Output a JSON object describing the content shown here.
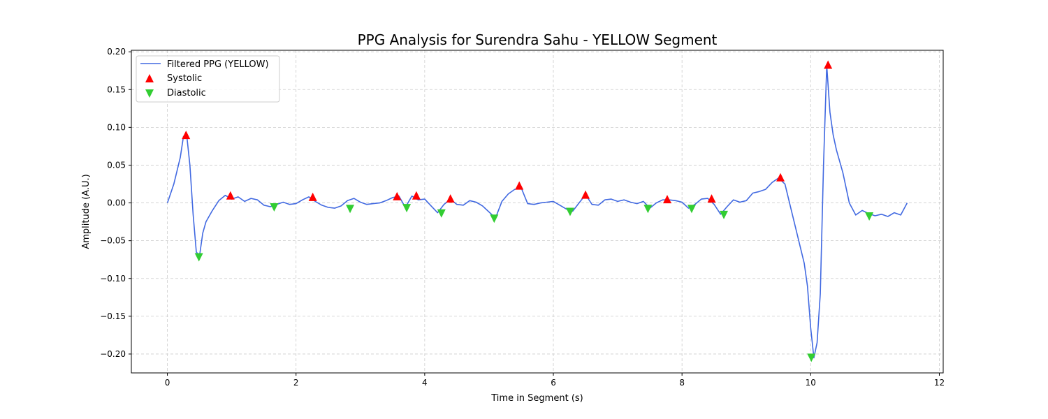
{
  "chart_data": {
    "type": "line",
    "title": "PPG Analysis for Surendra Sahu - YELLOW Segment",
    "xlabel": "Time in Segment (s)",
    "ylabel": "Amplitude (A.U.)",
    "xlim": [
      -0.56,
      12.06
    ],
    "ylim": [
      -0.225,
      0.202
    ],
    "xticks": [
      0,
      2,
      4,
      6,
      8,
      10,
      12
    ],
    "xtick_labels": [
      "0",
      "2",
      "4",
      "6",
      "8",
      "10",
      "12"
    ],
    "yticks": [
      -0.2,
      -0.15,
      -0.1,
      -0.05,
      0.0,
      0.05,
      0.1,
      0.15,
      0.2
    ],
    "ytick_labels": [
      "−0.20",
      "−0.15",
      "−0.10",
      "−0.05",
      "0.00",
      "0.05",
      "0.10",
      "0.15",
      "0.20"
    ],
    "grid": true,
    "legend_position": "top-left",
    "colors": {
      "line": "#4169e1",
      "systolic": "#ff0000",
      "diastolic": "#32cd32"
    },
    "series": [
      {
        "name": "Filtered PPG (YELLOW)",
        "kind": "line",
        "x": [
          0,
          0.1,
          0.2,
          0.25,
          0.3,
          0.35,
          0.4,
          0.45,
          0.5,
          0.55,
          0.6,
          0.7,
          0.8,
          0.9,
          1.0,
          1.1,
          1.2,
          1.3,
          1.4,
          1.5,
          1.6,
          1.7,
          1.8,
          1.9,
          2.0,
          2.1,
          2.2,
          2.3,
          2.4,
          2.5,
          2.6,
          2.7,
          2.8,
          2.9,
          3.0,
          3.1,
          3.2,
          3.3,
          3.4,
          3.5,
          3.6,
          3.7,
          3.8,
          3.9,
          4.0,
          4.1,
          4.2,
          4.3,
          4.4,
          4.5,
          4.6,
          4.7,
          4.8,
          4.9,
          5.0,
          5.1,
          5.2,
          5.3,
          5.4,
          5.5,
          5.6,
          5.7,
          5.8,
          5.9,
          6.0,
          6.1,
          6.2,
          6.3,
          6.4,
          6.5,
          6.6,
          6.7,
          6.8,
          6.9,
          7.0,
          7.1,
          7.2,
          7.3,
          7.4,
          7.5,
          7.6,
          7.7,
          7.8,
          7.9,
          8.0,
          8.1,
          8.2,
          8.3,
          8.4,
          8.5,
          8.6,
          8.7,
          8.8,
          8.9,
          9.0,
          9.1,
          9.2,
          9.3,
          9.4,
          9.5,
          9.6,
          9.7,
          9.8,
          9.9,
          9.95,
          10.0,
          10.05,
          10.1,
          10.15,
          10.2,
          10.25,
          10.3,
          10.35,
          10.4,
          10.5,
          10.6,
          10.7,
          10.8,
          10.9,
          11.0,
          11.1,
          11.2,
          11.3,
          11.4,
          11.5
        ],
        "y": [
          0.0,
          0.025,
          0.06,
          0.088,
          0.09,
          0.05,
          -0.015,
          -0.065,
          -0.07,
          -0.04,
          -0.025,
          -0.01,
          0.003,
          0.01,
          0.005,
          0.008,
          0.002,
          0.006,
          0.004,
          -0.003,
          -0.005,
          -0.002,
          0.001,
          -0.002,
          -0.001,
          0.004,
          0.008,
          0.002,
          -0.003,
          -0.006,
          -0.007,
          -0.004,
          0.003,
          0.006,
          0.001,
          -0.002,
          -0.001,
          0.0,
          0.003,
          0.007,
          0.009,
          -0.006,
          0.009,
          0.004,
          0.005,
          -0.004,
          -0.013,
          -0.002,
          0.005,
          -0.002,
          -0.003,
          0.003,
          0.001,
          -0.004,
          -0.012,
          -0.02,
          0.002,
          0.012,
          0.018,
          0.02,
          -0.001,
          -0.002,
          0.0,
          0.001,
          0.002,
          -0.003,
          -0.008,
          -0.011,
          0.0,
          0.011,
          -0.002,
          -0.003,
          0.004,
          0.005,
          0.002,
          0.004,
          0.001,
          -0.001,
          0.002,
          -0.007,
          0.0,
          0.004,
          0.004,
          0.003,
          0.001,
          -0.007,
          -0.002,
          0.005,
          0.006,
          -0.002,
          -0.015,
          -0.005,
          0.004,
          0.001,
          0.003,
          0.013,
          0.015,
          0.018,
          0.027,
          0.033,
          0.025,
          -0.01,
          -0.045,
          -0.08,
          -0.11,
          -0.165,
          -0.205,
          -0.185,
          -0.12,
          0.05,
          0.182,
          0.12,
          0.09,
          0.07,
          0.04,
          0.0,
          -0.016,
          -0.01,
          -0.014,
          -0.017,
          -0.015,
          -0.018,
          -0.013,
          -0.016,
          0.0
        ]
      },
      {
        "name": "Systolic",
        "kind": "marker-up",
        "x": [
          0.29,
          0.98,
          2.26,
          3.57,
          3.87,
          4.4,
          5.47,
          6.5,
          7.77,
          8.46,
          9.53,
          10.27
        ],
        "y": [
          0.09,
          0.01,
          0.008,
          0.009,
          0.01,
          0.006,
          0.023,
          0.011,
          0.005,
          0.006,
          0.034,
          0.183
        ]
      },
      {
        "name": "Diastolic",
        "kind": "marker-down",
        "x": [
          0.49,
          1.66,
          2.84,
          3.72,
          4.26,
          5.08,
          6.26,
          7.47,
          8.15,
          8.65,
          10.01,
          10.91
        ],
        "y": [
          -0.072,
          -0.006,
          -0.008,
          -0.007,
          -0.014,
          -0.021,
          -0.012,
          -0.008,
          -0.008,
          -0.016,
          -0.205,
          -0.018
        ]
      }
    ]
  }
}
